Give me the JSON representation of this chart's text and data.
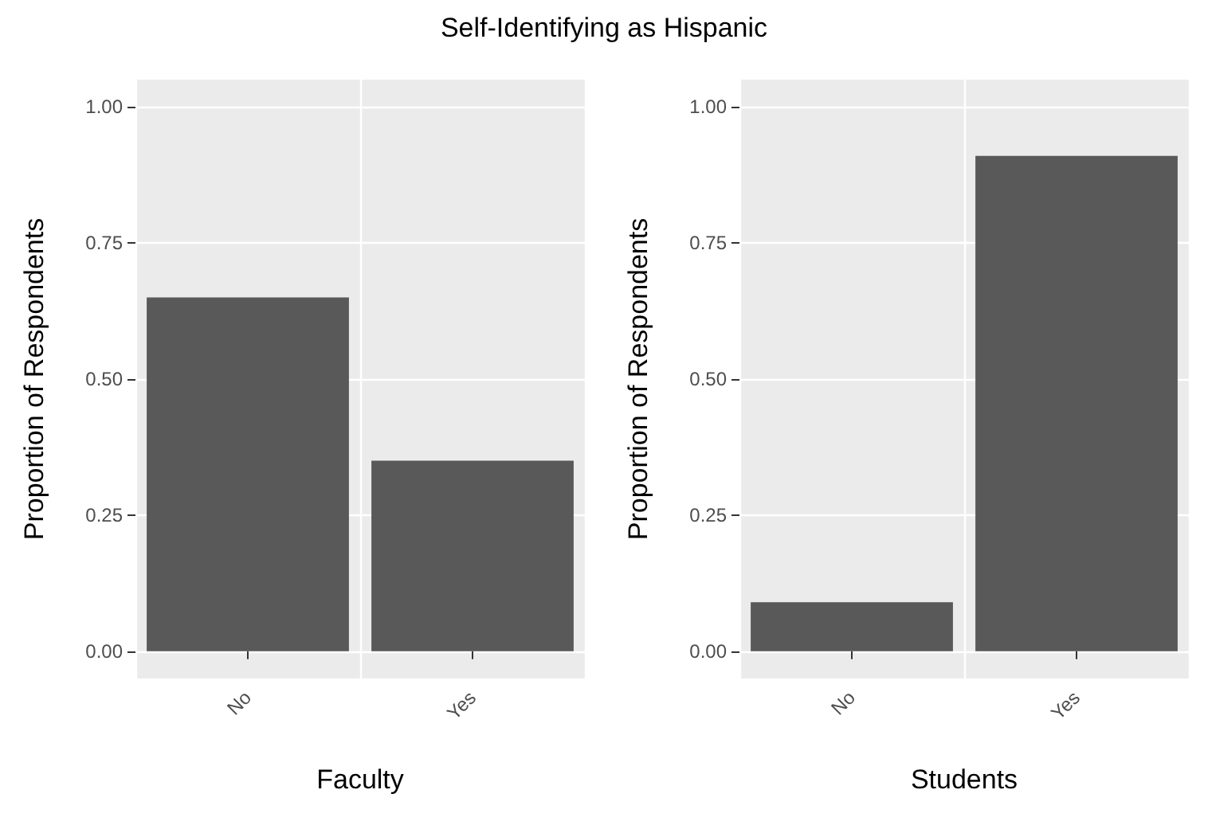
{
  "chart_data": [
    {
      "type": "bar",
      "title": "Self-Identifying as Hispanic",
      "categories": [
        "No",
        "Yes"
      ],
      "values": [
        0.65,
        0.35
      ],
      "color": "#595959",
      "xlabel": "Faculty",
      "ylabel": "Proportion of Respondents",
      "ylim": [
        -0.05,
        1.05
      ],
      "yticks": [
        {
          "value": 0,
          "label": "0.00"
        },
        {
          "value": 0.25,
          "label": "0.25"
        },
        {
          "value": 0.5,
          "label": "0.50"
        },
        {
          "value": 0.75,
          "label": "0.75"
        },
        {
          "value": 1,
          "label": "1.00"
        }
      ],
      "grid": true
    },
    {
      "type": "bar",
      "categories": [
        "No",
        "Yes"
      ],
      "values": [
        0.09,
        0.91
      ],
      "color": "#595959",
      "xlabel": "Students",
      "ylabel": "Proportion of Respondents",
      "ylim": [
        -0.05,
        1.05
      ],
      "yticks": [
        {
          "value": 0,
          "label": "0.00"
        },
        {
          "value": 0.25,
          "label": "0.25"
        },
        {
          "value": 0.5,
          "label": "0.50"
        },
        {
          "value": 0.75,
          "label": "0.75"
        },
        {
          "value": 1,
          "label": "1.00"
        }
      ],
      "grid": true
    }
  ]
}
